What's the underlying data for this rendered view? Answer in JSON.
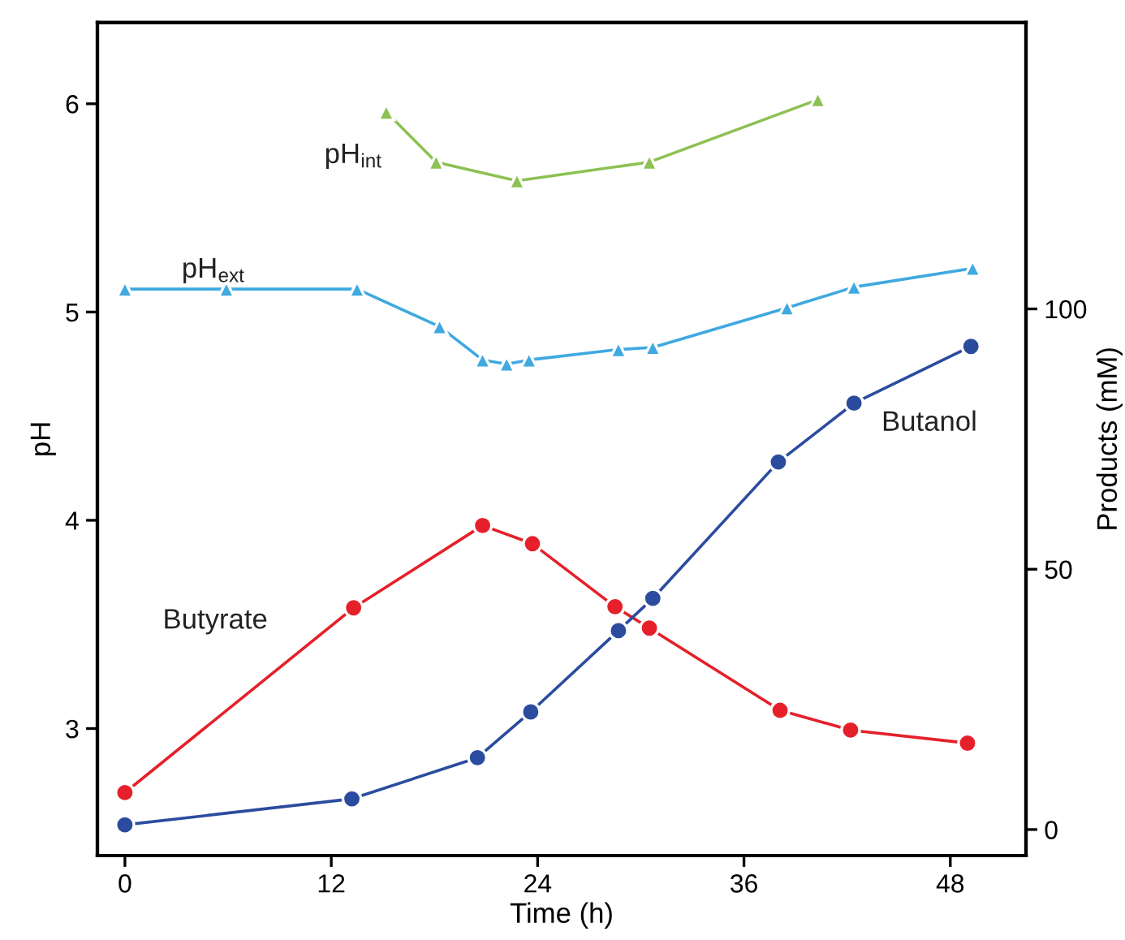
{
  "chart_data": {
    "type": "line",
    "xlabel": "Time (h)",
    "ylabel": "pH",
    "y2label": "Products (mM)",
    "xlim": [
      -1.6,
      52.4
    ],
    "xticks": [
      0,
      12,
      24,
      36,
      48
    ],
    "ylim": [
      2.39,
      6.39
    ],
    "yticks": [
      3,
      4,
      5,
      6
    ],
    "y2lim": [
      -5,
      155
    ],
    "y2ticks": [
      0,
      50,
      100
    ],
    "grid": false,
    "legend": false,
    "series": [
      {
        "name": "pH$_{int}$",
        "color": "#8dc153",
        "marker": "triangle",
        "x": [
          15.2,
          18.1,
          22.8,
          30.5,
          40.3
        ],
        "values": [
          5.96,
          5.72,
          5.63,
          5.72,
          6.02
        ]
      },
      {
        "name": "pH$_{ext}$",
        "color": "#3fa9e0",
        "marker": "triangle",
        "x": [
          0,
          5.9,
          13.5,
          18.3,
          20.8,
          22.2,
          23.5,
          28.7,
          30.7,
          38.5,
          42.4,
          49.3
        ],
        "values": [
          5.11,
          5.11,
          5.11,
          4.93,
          4.77,
          4.75,
          4.77,
          4.82,
          4.83,
          5.02,
          5.12,
          5.21
        ]
      },
      {
        "name": "Butyrate",
        "color": "#e5202a",
        "marker": "circle",
        "axis": "y2",
        "x": [
          0,
          13.3,
          20.8,
          23.7,
          28.5,
          30.5,
          38.1,
          42.2,
          49.0
        ],
        "values": [
          7.1,
          42.6,
          58.4,
          54.9,
          42.8,
          38.7,
          22.9,
          19.1,
          16.6
        ]
      },
      {
        "name": "Butanol",
        "color": "#2b4c9e",
        "marker": "circle",
        "axis": "y2",
        "x": [
          0,
          13.2,
          20.5,
          23.6,
          28.7,
          30.7,
          38.0,
          42.4,
          49.2
        ],
        "values": [
          0.9,
          5.9,
          13.8,
          22.6,
          38.2,
          44.4,
          70.6,
          81.9,
          92.8
        ]
      }
    ]
  }
}
